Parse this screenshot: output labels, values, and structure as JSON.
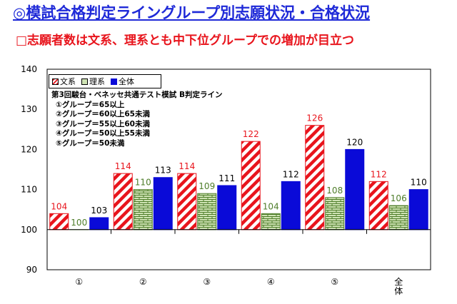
{
  "header": {
    "title": "◎模試合格判定ライングループ別志願状況・合格状況",
    "subtitle": "□志願者数は文系、理系とも中下位グループでの増加が目立つ"
  },
  "note": {
    "heading": "第3回駿台・ベネッセ共通テスト模試 B判定ライン",
    "lines": [
      "①グループ＝65以上",
      "②グループ＝60以上65未満",
      "③グループ＝55以上60未満",
      "④グループ＝50以上55未満",
      "⑤グループ＝50未満"
    ]
  },
  "colors": {
    "bunkei": "#e8141c",
    "rikei_fill": "#cfe3b4",
    "rikei_line": "#4e7d2a",
    "zentai": "#0a0ad8"
  },
  "chart_data": {
    "type": "bar",
    "categories": [
      "①",
      "②",
      "③",
      "④",
      "⑤",
      "全体"
    ],
    "series": [
      {
        "name": "文系",
        "values": [
          104,
          114,
          114,
          122,
          126,
          112
        ]
      },
      {
        "name": "理系",
        "values": [
          100,
          110,
          109,
          104,
          108,
          106
        ]
      },
      {
        "name": "全体",
        "values": [
          103,
          113,
          111,
          112,
          120,
          110
        ]
      }
    ],
    "ylim": [
      90,
      140
    ],
    "yticks": [
      90,
      100,
      110,
      120,
      130,
      140
    ],
    "baseline": 100,
    "legend": "top-left",
    "grid": false
  }
}
